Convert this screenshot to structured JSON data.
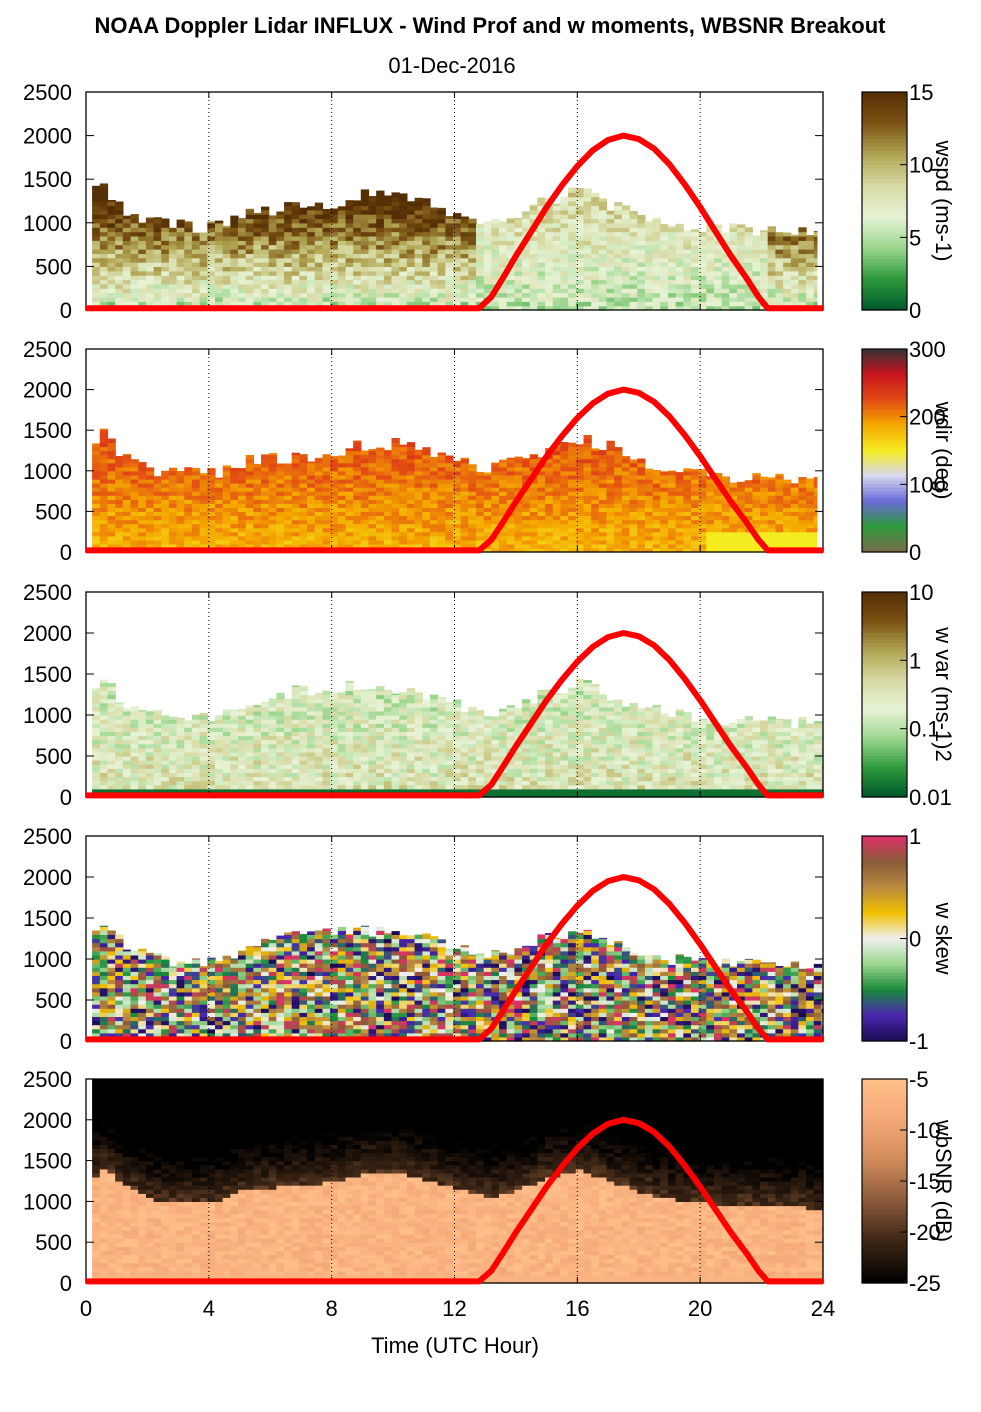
{
  "figure": {
    "title": "NOAA Doppler Lidar INFLUX - Wind Prof and w moments, WBSNR Breakout",
    "subtitle": "01-Dec-2016",
    "xlabel": "Time (UTC Hour)"
  },
  "chart_data": [
    {
      "type": "heatmap",
      "variable": "wspd",
      "colorbar_label": "wspd (ms-1)",
      "colorbar_ticks": [
        "0",
        "5",
        "10",
        "15"
      ],
      "clim": [
        0,
        15
      ],
      "colors": [
        "#00582c",
        "#2e9a3c",
        "#9cd68e",
        "#e8f3d6",
        "#d6d9a2",
        "#b0a452",
        "#7a5214",
        "#542e04"
      ],
      "xlim": [
        0,
        24
      ],
      "ylim": [
        0,
        2500
      ],
      "x_ticks": [
        0,
        4,
        8,
        12,
        16,
        20,
        24
      ],
      "y_ticks": [
        0,
        500,
        1000,
        1500,
        2000,
        2500
      ],
      "y_tick_labels": [
        "0",
        "500",
        "1000",
        "1500",
        "2000",
        "2500"
      ],
      "profile_top_m": [
        [
          0.2,
          1400
        ],
        [
          0.5,
          1400
        ],
        [
          1.0,
          1200
        ],
        [
          2.0,
          1000
        ],
        [
          3.0,
          970
        ],
        [
          4.0,
          960
        ],
        [
          5.0,
          1120
        ],
        [
          6.0,
          1150
        ],
        [
          7.0,
          1170
        ],
        [
          8.0,
          1230
        ],
        [
          9.0,
          1320
        ],
        [
          10.0,
          1330
        ],
        [
          11.0,
          1230
        ],
        [
          12.0,
          1120
        ],
        [
          13.0,
          1030
        ],
        [
          14.0,
          1120
        ],
        [
          15.0,
          1280
        ],
        [
          16.0,
          1360
        ],
        [
          17.0,
          1210
        ],
        [
          18.0,
          1090
        ],
        [
          19.0,
          1000
        ],
        [
          20.0,
          960
        ],
        [
          21.0,
          930
        ],
        [
          22.0,
          930
        ],
        [
          23.0,
          910
        ],
        [
          23.8,
          900
        ]
      ],
      "grid": "dotted vertical every 4 h"
    },
    {
      "type": "heatmap",
      "variable": "wdir",
      "colorbar_label": "wdir (deg)",
      "colorbar_ticks": [
        "0",
        "100",
        "200",
        "300"
      ],
      "clim": [
        0,
        360
      ],
      "colors": [
        "#7a6a4a",
        "#2e9a3c",
        "#6a6ad8",
        "#d8d8f0",
        "#f5ec20",
        "#f5a800",
        "#e24a14",
        "#c8141e",
        "#333333"
      ],
      "xlim": [
        0,
        24
      ],
      "ylim": [
        0,
        2500
      ],
      "x_ticks": [
        0,
        4,
        8,
        12,
        16,
        20,
        24
      ],
      "y_ticks": [
        0,
        500,
        1000,
        1500,
        2000,
        2500
      ],
      "y_tick_labels": [
        "0",
        "500",
        "1000",
        "1500",
        "2000",
        "2500"
      ],
      "profile_top_m": [
        [
          0.2,
          1400
        ],
        [
          0.5,
          1450
        ],
        [
          1.0,
          1200
        ],
        [
          2.0,
          1000
        ],
        [
          3.0,
          970
        ],
        [
          4.0,
          960
        ],
        [
          5.0,
          1120
        ],
        [
          6.0,
          1150
        ],
        [
          7.0,
          1170
        ],
        [
          8.0,
          1230
        ],
        [
          9.0,
          1320
        ],
        [
          10.0,
          1330
        ],
        [
          11.0,
          1230
        ],
        [
          12.0,
          1120
        ],
        [
          13.0,
          1030
        ],
        [
          14.0,
          1120
        ],
        [
          15.0,
          1280
        ],
        [
          16.0,
          1400
        ],
        [
          17.0,
          1300
        ],
        [
          18.0,
          1090
        ],
        [
          19.0,
          1000
        ],
        [
          20.0,
          960
        ],
        [
          21.0,
          930
        ],
        [
          22.0,
          930
        ],
        [
          23.0,
          910
        ],
        [
          23.8,
          900
        ]
      ],
      "grid": "dotted vertical every 4 h"
    },
    {
      "type": "heatmap",
      "variable": "w var",
      "colorbar_label": "w var (ms-1)2",
      "colorbar_ticks": [
        "0.01",
        "0.1",
        "1",
        "10"
      ],
      "clim": [
        0.01,
        10
      ],
      "scale": "log",
      "colors": [
        "#00582c",
        "#2e9a3c",
        "#9cd68e",
        "#e8f3d6",
        "#d6d9a2",
        "#b0a452",
        "#7a5214",
        "#542e04"
      ],
      "xlim": [
        0,
        24
      ],
      "ylim": [
        0,
        2500
      ],
      "x_ticks": [
        0,
        4,
        8,
        12,
        16,
        20,
        24
      ],
      "y_ticks": [
        0,
        500,
        1000,
        1500,
        2000,
        2500
      ],
      "y_tick_labels": [
        "0",
        "500",
        "1000",
        "1500",
        "2000",
        "2500"
      ],
      "profile_top_m": [
        [
          0.2,
          1300
        ],
        [
          0.5,
          1400
        ],
        [
          1.0,
          1200
        ],
        [
          2.0,
          1000
        ],
        [
          3.0,
          970
        ],
        [
          4.0,
          960
        ],
        [
          5.0,
          1120
        ],
        [
          6.0,
          1250
        ],
        [
          7.0,
          1300
        ],
        [
          8.0,
          1330
        ],
        [
          9.0,
          1340
        ],
        [
          10.0,
          1330
        ],
        [
          11.0,
          1230
        ],
        [
          12.0,
          1120
        ],
        [
          13.0,
          1030
        ],
        [
          14.0,
          1120
        ],
        [
          15.0,
          1280
        ],
        [
          16.0,
          1380
        ],
        [
          17.0,
          1210
        ],
        [
          18.0,
          1090
        ],
        [
          19.0,
          1000
        ],
        [
          20.0,
          960
        ],
        [
          21.0,
          930
        ],
        [
          22.0,
          930
        ],
        [
          23.0,
          910
        ],
        [
          24.0,
          880
        ]
      ],
      "grid": "dotted vertical every 4 h"
    },
    {
      "type": "heatmap",
      "variable": "w skew",
      "colorbar_label": "w skew",
      "colorbar_ticks": [
        "-1",
        "0",
        "1"
      ],
      "clim": [
        -1,
        1
      ],
      "colors": [
        "#1a0a50",
        "#4a28b0",
        "#1a8a3a",
        "#9cd68e",
        "#f0f0f0",
        "#f0c000",
        "#b88a40",
        "#8a5a3a",
        "#e0306a"
      ],
      "xlim": [
        0,
        24
      ],
      "ylim": [
        0,
        2500
      ],
      "x_ticks": [
        0,
        4,
        8,
        12,
        16,
        20,
        24
      ],
      "y_ticks": [
        0,
        500,
        1000,
        1500,
        2000,
        2500
      ],
      "y_tick_labels": [
        "0",
        "500",
        "1000",
        "1500",
        "2000",
        "2500"
      ],
      "profile_top_m": [
        [
          0.2,
          1300
        ],
        [
          0.5,
          1450
        ],
        [
          1.0,
          1200
        ],
        [
          2.0,
          1000
        ],
        [
          3.0,
          970
        ],
        [
          4.0,
          960
        ],
        [
          5.0,
          1120
        ],
        [
          6.0,
          1250
        ],
        [
          7.0,
          1300
        ],
        [
          8.0,
          1330
        ],
        [
          9.0,
          1340
        ],
        [
          10.0,
          1330
        ],
        [
          11.0,
          1230
        ],
        [
          12.0,
          1120
        ],
        [
          13.0,
          1030
        ],
        [
          14.0,
          1120
        ],
        [
          15.0,
          1280
        ],
        [
          16.0,
          1380
        ],
        [
          17.0,
          1210
        ],
        [
          18.0,
          1090
        ],
        [
          19.0,
          1000
        ],
        [
          20.0,
          960
        ],
        [
          21.0,
          930
        ],
        [
          22.0,
          930
        ],
        [
          23.0,
          910
        ],
        [
          24.0,
          880
        ]
      ],
      "grid": "dotted vertical every 4 h"
    },
    {
      "type": "heatmap",
      "variable": "wbSNR",
      "colorbar_label": "wbSNR (dB)",
      "colorbar_ticks": [
        "-25",
        "-20",
        "-15",
        "-10",
        "-5"
      ],
      "clim": [
        -25,
        -5
      ],
      "colors": [
        "#000000",
        "#3a2414",
        "#8a5a3a",
        "#d08a5a",
        "#f5a878",
        "#ffc08a"
      ],
      "xlim": [
        0,
        24
      ],
      "ylim": [
        0,
        2500
      ],
      "x_ticks": [
        0,
        4,
        8,
        12,
        16,
        20,
        24
      ],
      "y_ticks": [
        0,
        500,
        1000,
        1500,
        2000,
        2500
      ],
      "y_tick_labels": [
        "0",
        "500",
        "1000",
        "1500",
        "2000",
        "2500"
      ],
      "x_tick_labels": [
        "0",
        "4",
        "8",
        "12",
        "16",
        "20",
        "24"
      ],
      "profile_top_m": [
        [
          0.2,
          1300
        ],
        [
          0.5,
          1400
        ],
        [
          1.0,
          1200
        ],
        [
          2.0,
          1000
        ],
        [
          3.0,
          970
        ],
        [
          4.0,
          960
        ],
        [
          5.0,
          1120
        ],
        [
          6.0,
          1150
        ],
        [
          7.0,
          1170
        ],
        [
          8.0,
          1230
        ],
        [
          9.0,
          1320
        ],
        [
          10.0,
          1330
        ],
        [
          11.0,
          1230
        ],
        [
          12.0,
          1120
        ],
        [
          13.0,
          1030
        ],
        [
          14.0,
          1120
        ],
        [
          15.0,
          1280
        ],
        [
          16.0,
          1360
        ],
        [
          17.0,
          1210
        ],
        [
          18.0,
          1090
        ],
        [
          19.0,
          1000
        ],
        [
          20.0,
          960
        ],
        [
          21.0,
          930
        ],
        [
          22.0,
          930
        ],
        [
          23.0,
          910
        ],
        [
          24.0,
          880
        ]
      ],
      "grid": "dotted vertical every 4 h"
    }
  ],
  "overlay": {
    "type": "line",
    "color": "#ff0000",
    "description_series": "solar elevation curve",
    "x": [
      0,
      12.8,
      13.2,
      13.6,
      14.0,
      14.5,
      15.0,
      15.5,
      16.0,
      16.5,
      17.0,
      17.5,
      18.0,
      18.5,
      19.0,
      19.5,
      20.0,
      20.5,
      21.0,
      21.5,
      21.9,
      22.2,
      24
    ],
    "y": [
      20,
      20,
      150,
      380,
      620,
      900,
      1180,
      1430,
      1650,
      1830,
      1950,
      2000,
      1960,
      1850,
      1670,
      1440,
      1180,
      900,
      620,
      370,
      150,
      20,
      20
    ]
  }
}
